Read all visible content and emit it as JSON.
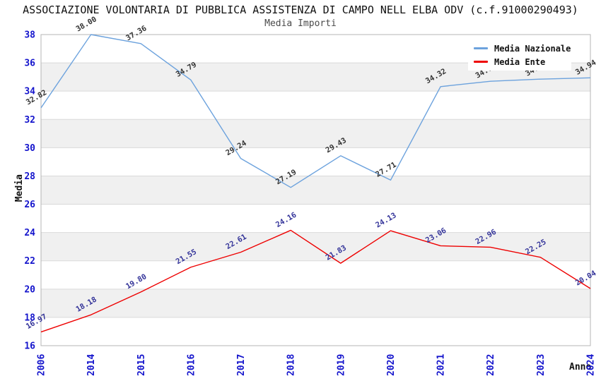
{
  "chart_data": {
    "type": "line",
    "title": "ASSOCIAZIONE VOLONTARIA DI PUBBLICA ASSISTENZA DI CAMPO NELL ELBA ODV (c.f.91000290493)",
    "subtitle": "Media Importi",
    "xlabel": "Anno",
    "ylabel": "Media",
    "categories": [
      "2006",
      "2014",
      "2015",
      "2016",
      "2017",
      "2018",
      "2019",
      "2020",
      "2021",
      "2022",
      "2023",
      "2024"
    ],
    "series": [
      {
        "name": "Media Nazionale",
        "color": "#6ca2dd",
        "label_color": "#333333",
        "values": [
          32.82,
          38.0,
          37.36,
          34.79,
          29.24,
          27.19,
          29.43,
          27.71,
          34.32,
          34.7,
          34.85,
          34.94
        ]
      },
      {
        "name": "Media Ente",
        "color": "#ee0000",
        "label_color": "#333399",
        "values": [
          16.97,
          18.18,
          19.8,
          21.55,
          22.61,
          24.16,
          21.83,
          24.13,
          23.06,
          22.96,
          22.25,
          20.04
        ]
      }
    ],
    "ylim": [
      16,
      38
    ],
    "y_ticks": [
      16,
      18,
      20,
      22,
      24,
      26,
      28,
      30,
      32,
      34,
      36,
      38
    ],
    "grid": true,
    "legend_position": "top-right"
  },
  "colors": {
    "tick_label": "#1414cc",
    "band": "#f0f0f0",
    "gridline": "#d9d9d9",
    "plot_border": "#b5b5b5",
    "background": "#ffffff"
  }
}
